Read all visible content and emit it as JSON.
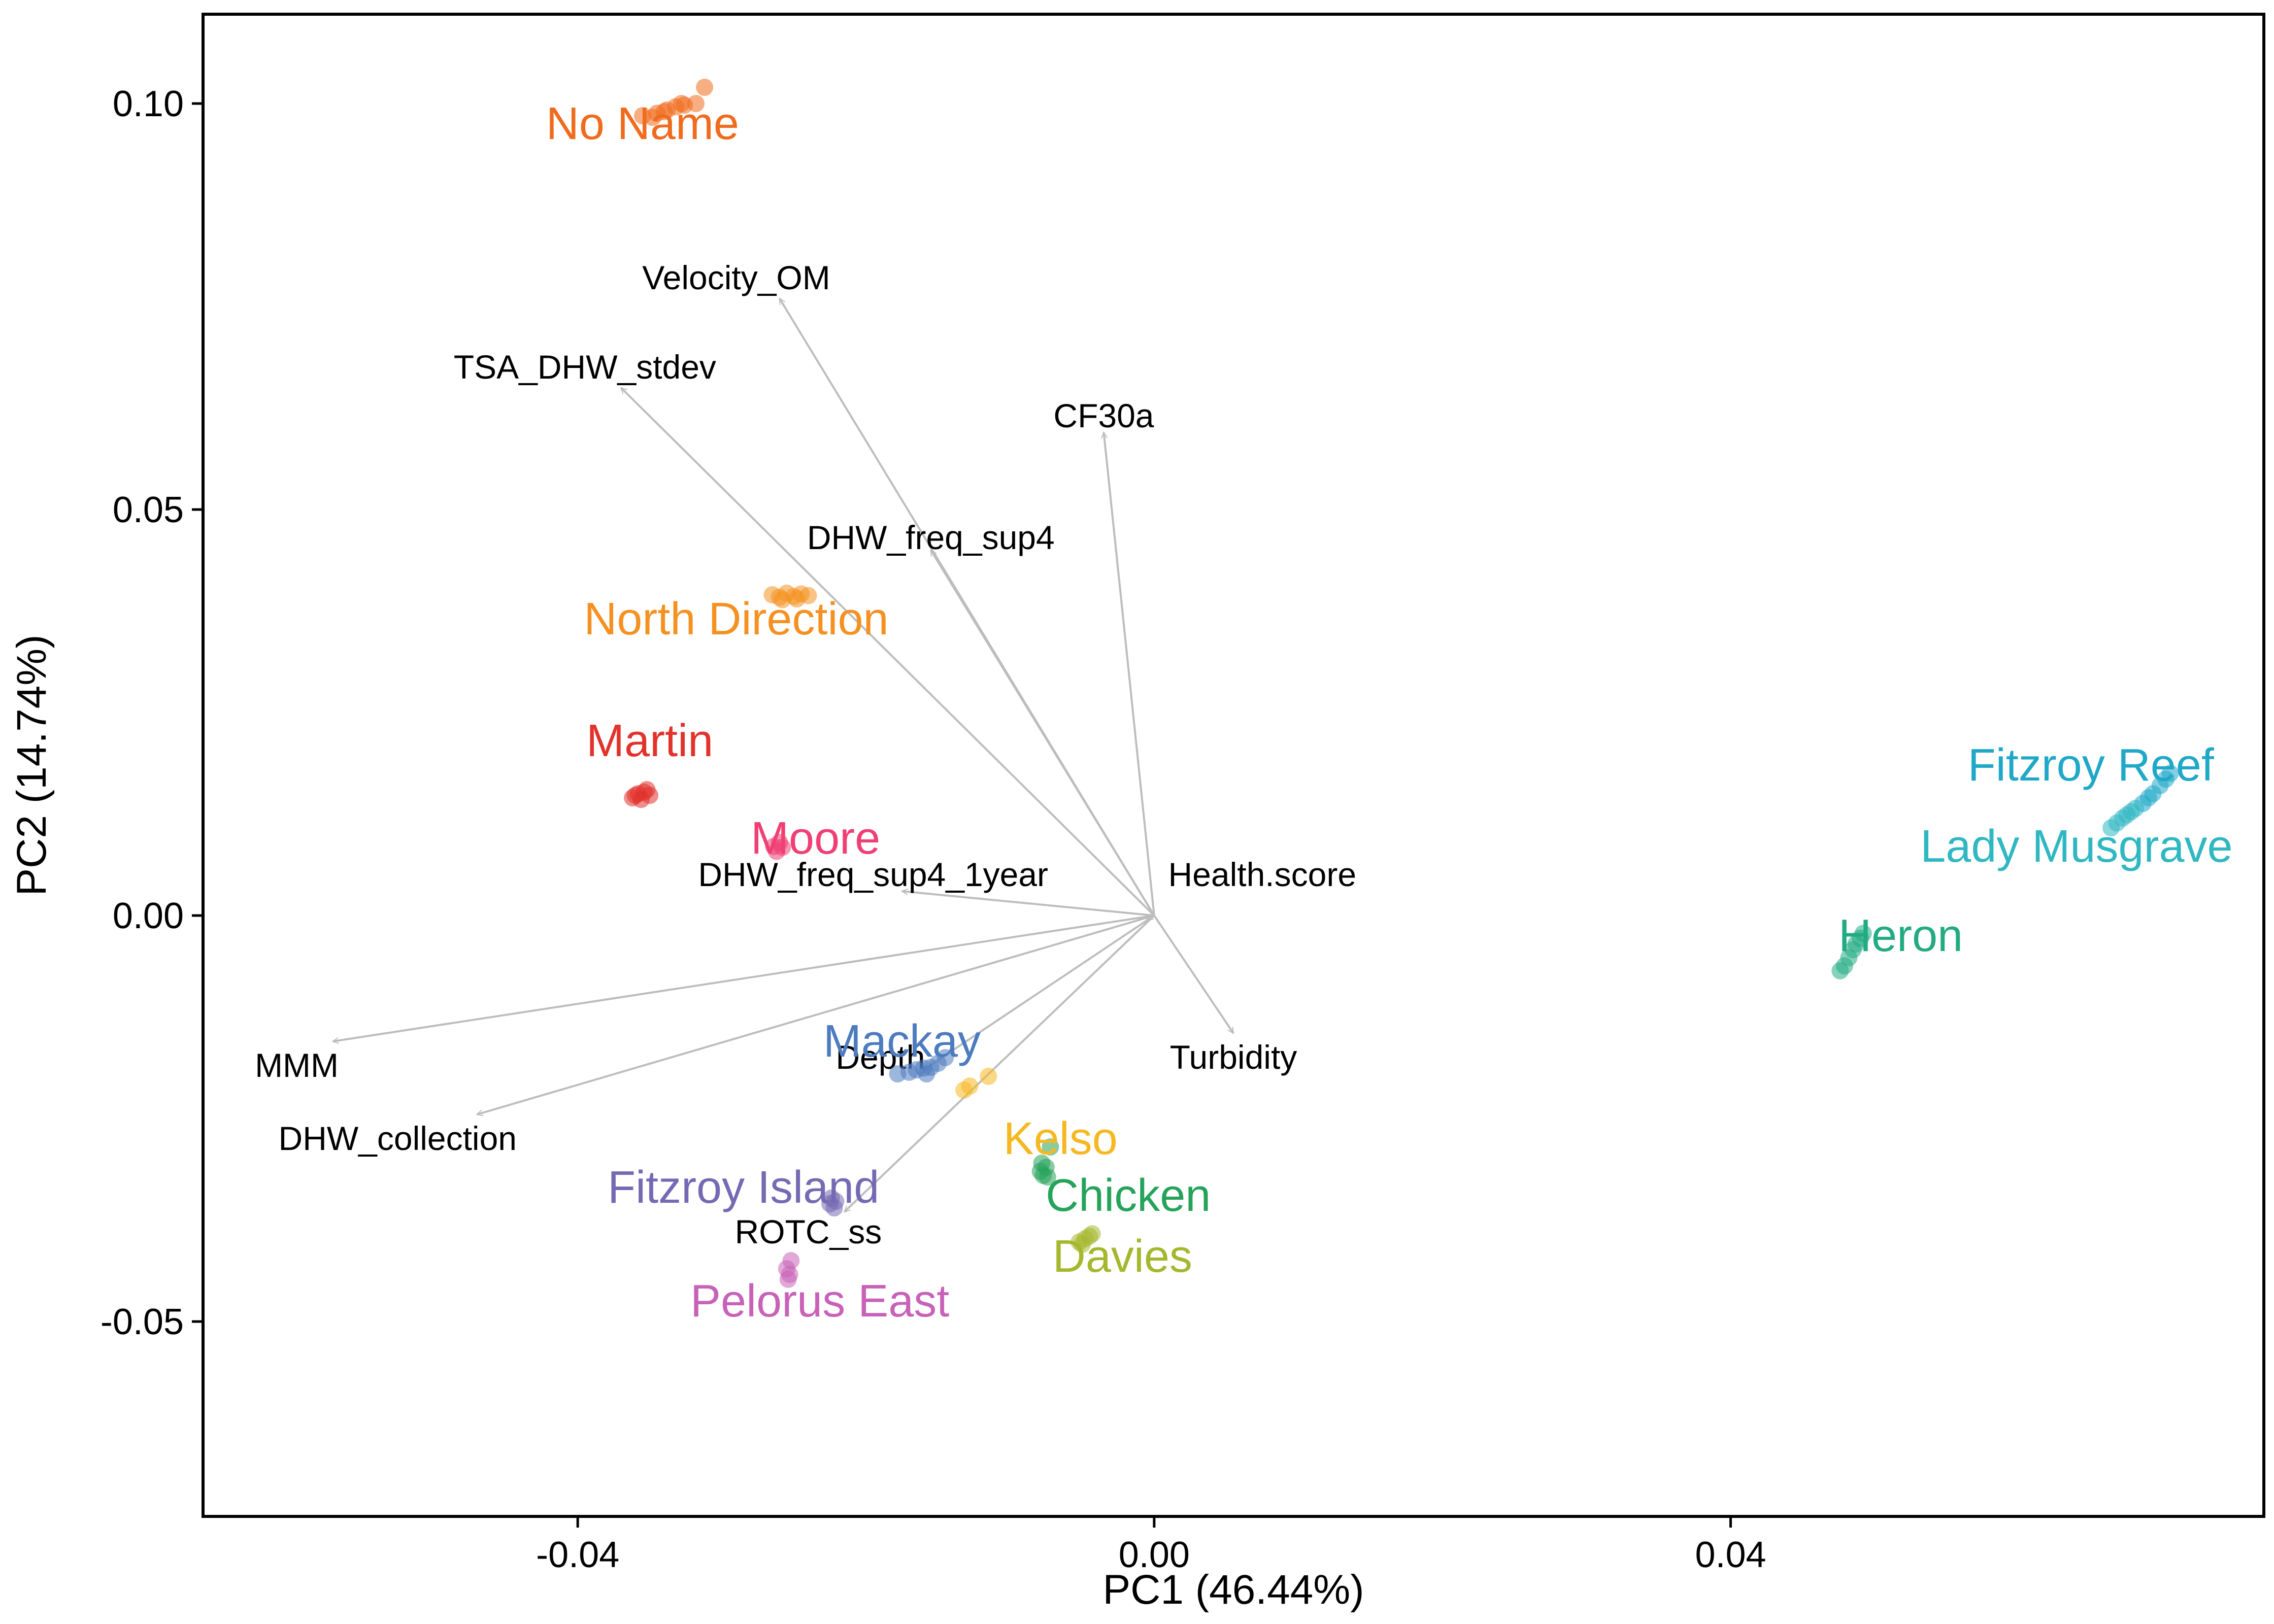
{
  "chart_data": {
    "type": "scatter",
    "title": "",
    "xlabel": "PC1 (46.44%)",
    "ylabel": "PC2 (14.74%)",
    "xlim": [
      -0.066,
      0.077
    ],
    "ylim": [
      -0.074,
      0.111
    ],
    "grid": false,
    "legend": "none",
    "xticks": [
      {
        "value": -0.04,
        "label": "-0.04"
      },
      {
        "value": 0.0,
        "label": "0.00"
      },
      {
        "value": 0.04,
        "label": "0.04"
      }
    ],
    "yticks": [
      {
        "value": 0.1,
        "label": "0.10"
      },
      {
        "value": 0.05,
        "label": "0.05"
      },
      {
        "value": 0.0,
        "label": "0.00"
      },
      {
        "value": -0.05,
        "label": "-0.05"
      }
    ],
    "vector_origin": [
      0.0,
      0.0
    ],
    "arrow_color": "#bdbdbd",
    "vectors": [
      {
        "name": "Velocity_OM",
        "x": -0.026,
        "y": 0.076,
        "label_x": -0.029,
        "label_y": 0.0785
      },
      {
        "name": "TSA_DHW_stdev",
        "x": -0.037,
        "y": 0.065,
        "label_x": -0.0395,
        "label_y": 0.0675
      },
      {
        "name": "CF30a",
        "x": -0.0035,
        "y": 0.0595,
        "label_x": -0.0035,
        "label_y": 0.0615
      },
      {
        "name": "DHW_freq_sup4",
        "x": -0.0155,
        "y": 0.045,
        "label_x": -0.0155,
        "label_y": 0.0465
      },
      {
        "name": "DHW_freq_sup4_1year",
        "x": -0.0175,
        "y": 0.003,
        "label_x": -0.0195,
        "label_y": 0.005
      },
      {
        "name": "Health.score",
        "x": -0.0005,
        "y": -0.0005,
        "label_x": 0.0075,
        "label_y": 0.005
      },
      {
        "name": "MMM",
        "x": -0.057,
        "y": -0.0155,
        "label_x": -0.0595,
        "label_y": -0.0185
      },
      {
        "name": "DHW_collection",
        "x": -0.047,
        "y": -0.0245,
        "label_x": -0.0525,
        "label_y": -0.0275
      },
      {
        "name": "Turbidity",
        "x": 0.0055,
        "y": -0.0145,
        "label_x": 0.0055,
        "label_y": -0.0175
      },
      {
        "name": "Depth",
        "x": -0.016,
        "y": -0.019,
        "label_x": -0.019,
        "label_y": -0.0175
      },
      {
        "name": "ROTC_ss",
        "x": -0.0215,
        "y": -0.0365,
        "label_x": -0.024,
        "label_y": -0.039
      }
    ],
    "series": [
      {
        "name": "No Name",
        "color": "#f06b1d",
        "label_x": -0.0355,
        "label_y": 0.0975,
        "points": [
          [
            -0.0355,
            0.0985
          ],
          [
            -0.0345,
            0.0988
          ],
          [
            -0.0338,
            0.0992
          ],
          [
            -0.0332,
            0.0996
          ],
          [
            -0.0326,
            0.0998
          ],
          [
            -0.0348,
            0.0983
          ],
          [
            -0.034,
            0.099
          ],
          [
            -0.0318,
            0.1
          ],
          [
            -0.0312,
            0.102
          ],
          [
            -0.0328,
            0.1
          ]
        ]
      },
      {
        "name": "North Direction",
        "color": "#f49120",
        "label_x": -0.029,
        "label_y": 0.0365,
        "points": [
          [
            -0.0265,
            0.0395
          ],
          [
            -0.026,
            0.0392
          ],
          [
            -0.0255,
            0.0397
          ],
          [
            -0.025,
            0.0393
          ],
          [
            -0.0245,
            0.0396
          ],
          [
            -0.024,
            0.0394
          ],
          [
            -0.0258,
            0.0389
          ],
          [
            -0.0248,
            0.039
          ]
        ]
      },
      {
        "name": "Martin",
        "color": "#e2322b",
        "label_x": -0.035,
        "label_y": 0.0215,
        "points": [
          [
            -0.0362,
            0.0145
          ],
          [
            -0.0358,
            0.015
          ],
          [
            -0.0354,
            0.0152
          ],
          [
            -0.035,
            0.0148
          ],
          [
            -0.0356,
            0.0143
          ],
          [
            -0.0352,
            0.0155
          ],
          [
            -0.036,
            0.0148
          ]
        ]
      },
      {
        "name": "Moore",
        "color": "#ef3f74",
        "label_x": -0.0235,
        "label_y": 0.0095,
        "points": [
          [
            -0.0264,
            0.0085
          ],
          [
            -0.026,
            0.009
          ],
          [
            -0.0262,
            0.0079
          ],
          [
            -0.0258,
            0.0084
          ]
        ]
      },
      {
        "name": "Mackay",
        "color": "#4d7bbf",
        "label_x": -0.0175,
        "label_y": -0.0155,
        "points": [
          [
            -0.0178,
            -0.0195
          ],
          [
            -0.017,
            -0.0193
          ],
          [
            -0.0165,
            -0.019
          ],
          [
            -0.016,
            -0.0188
          ],
          [
            -0.0155,
            -0.0187
          ],
          [
            -0.015,
            -0.0182
          ],
          [
            -0.0145,
            -0.0175
          ],
          [
            -0.0158,
            -0.0195
          ]
        ]
      },
      {
        "name": "Kelso",
        "color": "#f6b820",
        "label_x": -0.0065,
        "label_y": -0.0275,
        "points": [
          [
            -0.0132,
            -0.0215
          ],
          [
            -0.0128,
            -0.021
          ],
          [
            -0.0115,
            -0.0198
          ]
        ]
      },
      {
        "name": "Fitzroy Island",
        "color": "#7669b3",
        "label_x": -0.0285,
        "label_y": -0.0335,
        "points": [
          [
            -0.0225,
            -0.0355
          ],
          [
            -0.0222,
            -0.036
          ],
          [
            -0.0224,
            -0.0348
          ],
          [
            -0.0221,
            -0.0352
          ]
        ]
      },
      {
        "name": "Chicken",
        "color": "#25a35a",
        "label_x": -0.0018,
        "label_y": -0.0345,
        "points": [
          [
            -0.0079,
            -0.0315
          ],
          [
            -0.0077,
            -0.032
          ],
          [
            -0.0075,
            -0.031
          ],
          [
            -0.0078,
            -0.0305
          ],
          [
            -0.0074,
            -0.0322
          ],
          [
            -0.0072,
            -0.0285
          ]
        ]
      },
      {
        "name": "Davies",
        "color": "#a5b82d",
        "label_x": -0.0022,
        "label_y": -0.042,
        "points": [
          [
            -0.0052,
            -0.0402
          ],
          [
            -0.0048,
            -0.0398
          ],
          [
            -0.0045,
            -0.0395
          ],
          [
            -0.005,
            -0.0405
          ],
          [
            -0.0043,
            -0.0392
          ]
        ]
      },
      {
        "name": "Pelorus East",
        "color": "#c862b8",
        "label_x": -0.0232,
        "label_y": -0.0475,
        "points": [
          [
            -0.0255,
            -0.0435
          ],
          [
            -0.0253,
            -0.0442
          ],
          [
            -0.0252,
            -0.0425
          ],
          [
            -0.0254,
            -0.0448
          ]
        ]
      },
      {
        "name": "Fitzroy Reef",
        "color": "#1fa8c8",
        "label_x": 0.065,
        "label_y": 0.0185,
        "points": [
          [
            0.0705,
            0.0175
          ],
          [
            0.0702,
            0.0168
          ],
          [
            0.0698,
            0.016
          ],
          [
            0.0693,
            0.015
          ],
          [
            0.069,
            0.0145
          ],
          [
            0.0686,
            0.0138
          ]
        ]
      },
      {
        "name": "Lady Musgrave",
        "color": "#2fb7c2",
        "label_x": 0.064,
        "label_y": 0.0085,
        "points": [
          [
            0.0678,
            0.0128
          ],
          [
            0.0672,
            0.012
          ],
          [
            0.0668,
            0.0114
          ],
          [
            0.0664,
            0.0108
          ],
          [
            0.0681,
            0.0132
          ],
          [
            0.0675,
            0.0124
          ]
        ]
      },
      {
        "name": "Heron",
        "color": "#22ab82",
        "label_x": 0.0518,
        "label_y": -0.0025,
        "points": [
          [
            0.049,
            -0.0028
          ],
          [
            0.0487,
            -0.0035
          ],
          [
            0.0485,
            -0.0042
          ],
          [
            0.0482,
            -0.0052
          ],
          [
            0.0479,
            -0.0062
          ],
          [
            0.0476,
            -0.0068
          ],
          [
            0.0492,
            -0.0022
          ]
        ]
      }
    ]
  }
}
